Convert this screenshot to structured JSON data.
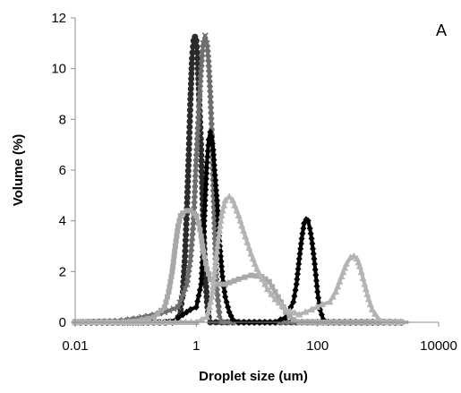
{
  "chart_data": {
    "type": "line",
    "panel_label": "A",
    "xlabel": "Droplet size (um)",
    "ylabel": "Volume (%)",
    "x_scale": "log",
    "xlim": [
      0.01,
      10000
    ],
    "ylim": [
      0,
      12
    ],
    "x_ticks": [
      {
        "value": 0.01,
        "label": "0.01"
      },
      {
        "value": 1,
        "label": "1"
      },
      {
        "value": 100,
        "label": "100"
      },
      {
        "value": 10000,
        "label": "10000"
      }
    ],
    "y_ticks": [
      {
        "value": 0,
        "label": "0"
      },
      {
        "value": 2,
        "label": "2"
      },
      {
        "value": 4,
        "label": "4"
      },
      {
        "value": 6,
        "label": "6"
      },
      {
        "value": 8,
        "label": "8"
      },
      {
        "value": 10,
        "label": "10"
      },
      {
        "value": 12,
        "label": "12"
      }
    ],
    "grid": false,
    "legend": "none",
    "series": [
      {
        "color": "#2b2b2b",
        "marker": "circle",
        "points": [
          [
            0.01,
            0
          ],
          [
            0.1,
            0
          ],
          [
            0.3,
            0
          ],
          [
            0.45,
            0.05
          ],
          [
            0.5,
            0.2
          ],
          [
            0.55,
            0.5
          ],
          [
            0.6,
            1.2
          ],
          [
            0.65,
            2.6
          ],
          [
            0.7,
            4.5
          ],
          [
            0.75,
            6.6
          ],
          [
            0.8,
            8.8
          ],
          [
            0.85,
            10.4
          ],
          [
            0.9,
            11.1
          ],
          [
            0.95,
            11.25
          ],
          [
            1.0,
            11.1
          ],
          [
            1.05,
            10.4
          ],
          [
            1.1,
            9.2
          ],
          [
            1.2,
            6.8
          ],
          [
            1.3,
            4.0
          ],
          [
            1.4,
            2.0
          ],
          [
            1.5,
            0.8
          ],
          [
            1.6,
            0.2
          ],
          [
            1.7,
            0
          ],
          [
            5,
            0
          ],
          [
            100,
            0
          ],
          [
            1000,
            0
          ],
          [
            3000,
            0
          ]
        ]
      },
      {
        "color": "#6e6e6e",
        "marker": "x",
        "points": [
          [
            0.01,
            0
          ],
          [
            0.05,
            0.05
          ],
          [
            0.1,
            0.15
          ],
          [
            0.2,
            0.3
          ],
          [
            0.3,
            0.4
          ],
          [
            0.5,
            0.6
          ],
          [
            0.7,
            1.5
          ],
          [
            0.8,
            2.5
          ],
          [
            0.9,
            4.0
          ],
          [
            1.0,
            6.5
          ],
          [
            1.1,
            8.4
          ],
          [
            1.2,
            10.0
          ],
          [
            1.3,
            11.0
          ],
          [
            1.4,
            11.3
          ],
          [
            1.5,
            11.0
          ],
          [
            1.6,
            10.2
          ],
          [
            1.7,
            9.0
          ],
          [
            1.8,
            7.5
          ],
          [
            1.9,
            5.5
          ],
          [
            2.0,
            3.8
          ],
          [
            2.1,
            2.2
          ],
          [
            2.2,
            1.2
          ],
          [
            2.4,
            0.3
          ],
          [
            2.6,
            0
          ],
          [
            10,
            0
          ],
          [
            100,
            0
          ],
          [
            1000,
            0
          ],
          [
            3000,
            0
          ]
        ]
      },
      {
        "color": "#000000",
        "marker": "diamond",
        "points": [
          [
            0.01,
            0
          ],
          [
            0.2,
            0
          ],
          [
            0.4,
            0
          ],
          [
            0.6,
            0.3
          ],
          [
            0.8,
            0.5
          ],
          [
            1.0,
            0.6
          ],
          [
            1.2,
            1.5
          ],
          [
            1.3,
            3.0
          ],
          [
            1.4,
            4.8
          ],
          [
            1.5,
            6.3
          ],
          [
            1.6,
            7.2
          ],
          [
            1.7,
            7.5
          ],
          [
            1.8,
            7.3
          ],
          [
            1.9,
            6.8
          ],
          [
            2.0,
            6.0
          ],
          [
            2.2,
            4.8
          ],
          [
            2.4,
            3.2
          ],
          [
            2.7,
            1.8
          ],
          [
            3.0,
            1.0
          ],
          [
            3.5,
            0.4
          ],
          [
            4.0,
            0.1
          ],
          [
            5.0,
            0
          ],
          [
            20,
            0
          ],
          [
            30,
            0.2
          ],
          [
            40,
            0.8
          ],
          [
            45,
            1.5
          ],
          [
            50,
            2.5
          ],
          [
            55,
            3.3
          ],
          [
            60,
            3.9
          ],
          [
            65,
            4.05
          ],
          [
            70,
            4.0
          ],
          [
            75,
            3.7
          ],
          [
            80,
            3.3
          ],
          [
            90,
            2.3
          ],
          [
            100,
            1.2
          ],
          [
            110,
            0.5
          ],
          [
            125,
            0.1
          ],
          [
            150,
            0
          ],
          [
            1000,
            0
          ],
          [
            3000,
            0
          ]
        ]
      },
      {
        "color": "#a8a8a8",
        "marker": "square",
        "points": [
          [
            0.01,
            0
          ],
          [
            0.05,
            0
          ],
          [
            0.1,
            0.05
          ],
          [
            0.2,
            0.2
          ],
          [
            0.3,
            0.6
          ],
          [
            0.35,
            1.2
          ],
          [
            0.4,
            2.0
          ],
          [
            0.45,
            3.0
          ],
          [
            0.5,
            3.8
          ],
          [
            0.55,
            4.2
          ],
          [
            0.6,
            4.3
          ],
          [
            0.7,
            4.4
          ],
          [
            0.8,
            4.4
          ],
          [
            0.9,
            4.3
          ],
          [
            1.0,
            4.2
          ],
          [
            1.1,
            3.9
          ],
          [
            1.2,
            3.4
          ],
          [
            1.3,
            2.8
          ],
          [
            1.5,
            2.1
          ],
          [
            1.7,
            1.7
          ],
          [
            2.0,
            1.5
          ],
          [
            3.0,
            1.5
          ],
          [
            5.0,
            1.7
          ],
          [
            8.0,
            1.85
          ],
          [
            12,
            1.8
          ],
          [
            16,
            1.6
          ],
          [
            20,
            1.2
          ],
          [
            25,
            0.8
          ],
          [
            30,
            0.4
          ],
          [
            40,
            0.1
          ],
          [
            50,
            0
          ],
          [
            1000,
            0
          ],
          [
            3000,
            0
          ]
        ]
      },
      {
        "color": "#b4b4b4",
        "marker": "triangle",
        "points": [
          [
            0.01,
            0
          ],
          [
            1.0,
            0
          ],
          [
            1.5,
            0.2
          ],
          [
            1.8,
            1.0
          ],
          [
            2.0,
            2.0
          ],
          [
            2.3,
            3.2
          ],
          [
            2.6,
            4.2
          ],
          [
            3.0,
            4.8
          ],
          [
            3.5,
            4.95
          ],
          [
            4.0,
            4.8
          ],
          [
            5.0,
            4.2
          ],
          [
            6.0,
            3.6
          ],
          [
            8.0,
            2.7
          ],
          [
            10,
            2.1
          ],
          [
            15,
            1.3
          ],
          [
            20,
            0.9
          ],
          [
            30,
            0.5
          ],
          [
            50,
            0.3
          ],
          [
            80,
            0.5
          ],
          [
            120,
            0.7
          ],
          [
            160,
            0.8
          ],
          [
            200,
            1.2
          ],
          [
            250,
            1.8
          ],
          [
            300,
            2.3
          ],
          [
            350,
            2.55
          ],
          [
            400,
            2.6
          ],
          [
            450,
            2.5
          ],
          [
            500,
            2.2
          ],
          [
            600,
            1.5
          ],
          [
            700,
            0.9
          ],
          [
            800,
            0.5
          ],
          [
            1000,
            0.15
          ],
          [
            1300,
            0
          ],
          [
            3000,
            0
          ]
        ]
      }
    ]
  }
}
